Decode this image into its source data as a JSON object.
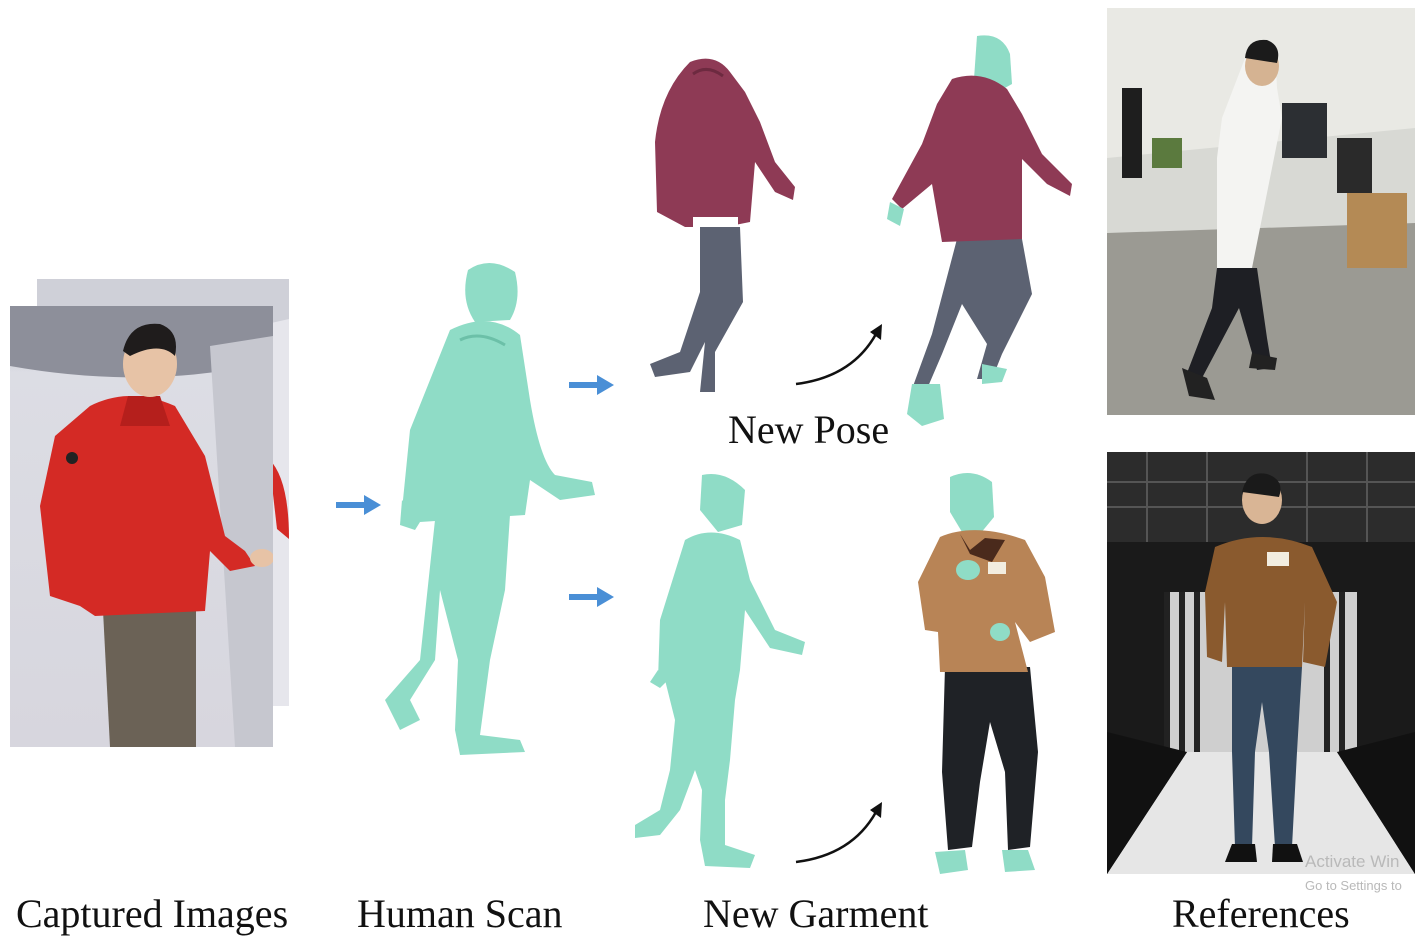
{
  "labels": {
    "captured_images": "Captured Images",
    "human_scan": "Human Scan",
    "new_garment": "New Garment",
    "references": "References",
    "new_pose": "New Pose"
  },
  "watermark": {
    "line1": "Activate Win",
    "line2": "Go to Settings to"
  },
  "colors": {
    "arrow_blue": "#4a8fd6",
    "scan_mint": "#8fdcc6",
    "jacket_maroon": "#8e3a55",
    "jacket_red": "#d42a25",
    "jacket_brown": "#b88456",
    "pants_gray": "#5c6272"
  }
}
